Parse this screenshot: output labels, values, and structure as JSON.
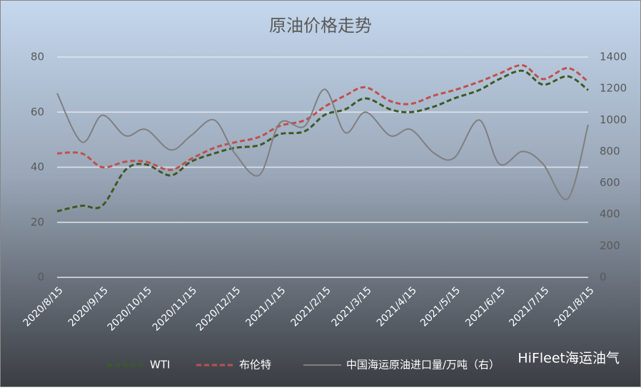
{
  "chart_data": {
    "type": "line",
    "title": "原油价格走势",
    "x": [
      "2020/8/15",
      "2020/9/1",
      "2020/9/15",
      "2020/10/1",
      "2020/10/15",
      "2020/11/1",
      "2020/11/15",
      "2020/12/1",
      "2020/12/15",
      "2021/1/1",
      "2021/1/15",
      "2021/2/1",
      "2021/2/15",
      "2021/3/1",
      "2021/3/15",
      "2021/4/1",
      "2021/4/15",
      "2021/5/1",
      "2021/5/15",
      "2021/6/1",
      "2021/6/15",
      "2021/7/1",
      "2021/7/15",
      "2021/8/1",
      "2021/8/15"
    ],
    "xticks": [
      "2020/8/15",
      "2020/9/15",
      "2020/10/15",
      "2020/11/15",
      "2020/12/15",
      "2021/1/15",
      "2021/2/15",
      "2021/3/15",
      "2021/4/15",
      "2021/5/15",
      "2021/6/15",
      "2021/7/15",
      "2021/8/15"
    ],
    "ylim": [
      0,
      80
    ],
    "yticks": [
      0,
      20,
      40,
      60,
      80
    ],
    "y2lim": [
      0,
      1400
    ],
    "y2ticks": [
      0,
      200,
      400,
      600,
      800,
      1000,
      1200,
      1400
    ],
    "grid": true,
    "series": [
      {
        "name": "WTI",
        "color": "#3d5a22",
        "dash": true,
        "values": [
          24,
          26,
          26,
          39,
          41,
          37,
          42,
          45,
          47,
          48,
          52,
          53,
          59,
          61,
          65,
          61,
          60,
          62,
          65,
          68,
          72,
          75,
          70,
          73,
          68
        ]
      },
      {
        "name": "布伦特",
        "color": "#c0504d",
        "dash": true,
        "values": [
          45,
          45,
          40,
          42,
          42,
          39,
          43,
          47,
          49,
          51,
          55,
          57,
          62,
          66,
          69,
          64,
          63,
          66,
          68,
          71,
          74,
          77,
          72,
          76,
          71
        ]
      },
      {
        "name": "中国海运原油进口量/万吨（右）",
        "color": "#7f7f7f",
        "axis": "y2",
        "values": [
          1170,
          860,
          1030,
          900,
          940,
          810,
          900,
          1000,
          790,
          650,
          980,
          960,
          1195,
          920,
          1050,
          900,
          940,
          790,
          760,
          1000,
          720,
          800,
          720,
          500,
          970
        ]
      }
    ],
    "watermark": "HiFleet海运油气"
  }
}
